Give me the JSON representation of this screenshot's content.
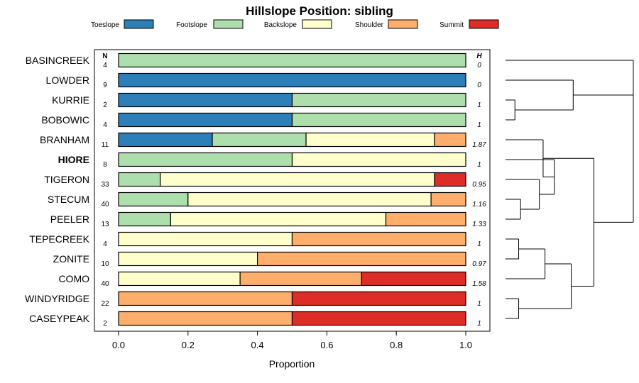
{
  "chart_data": {
    "type": "bar",
    "orientation": "horizontal",
    "stacked": true,
    "title": "Hillslope Position: sibling",
    "xlabel": "Proportion",
    "xlim": [
      0,
      1
    ],
    "xticks": [
      "0.0",
      "0.2",
      "0.4",
      "0.6",
      "0.8",
      "1.0"
    ],
    "n_header": "N",
    "h_header": "H",
    "highlight_category": "HIORE",
    "legend_position": "top",
    "series": [
      {
        "name": "Toeslope",
        "color": "#2c7fb8"
      },
      {
        "name": "Footslope",
        "color": "#addfad"
      },
      {
        "name": "Backslope",
        "color": "#ffffcc"
      },
      {
        "name": "Shoulder",
        "color": "#fdae6b"
      },
      {
        "name": "Summit",
        "color": "#de2d26"
      }
    ],
    "rows": [
      {
        "category": "BASINCREEK",
        "n": "4",
        "h": "0",
        "values": [
          0,
          1,
          0,
          0,
          0
        ]
      },
      {
        "category": "LOWDER",
        "n": "9",
        "h": "0",
        "values": [
          1,
          0,
          0,
          0,
          0
        ]
      },
      {
        "category": "KURRIE",
        "n": "2",
        "h": "1",
        "values": [
          0.5,
          0.5,
          0,
          0,
          0
        ]
      },
      {
        "category": "BOBOWIC",
        "n": "4",
        "h": "1",
        "values": [
          0.5,
          0.5,
          0,
          0,
          0
        ]
      },
      {
        "category": "BRANHAM",
        "n": "11",
        "h": "1.87",
        "values": [
          0.27,
          0.27,
          0.37,
          0.09,
          0
        ]
      },
      {
        "category": "HIORE",
        "n": "8",
        "h": "1",
        "values": [
          0,
          0.5,
          0.5,
          0,
          0
        ]
      },
      {
        "category": "TIGERON",
        "n": "33",
        "h": "0.95",
        "values": [
          0,
          0.12,
          0.79,
          0,
          0.09
        ]
      },
      {
        "category": "STECUM",
        "n": "40",
        "h": "1.16",
        "values": [
          0,
          0.2,
          0.7,
          0.1,
          0
        ]
      },
      {
        "category": "PEELER",
        "n": "13",
        "h": "1.33",
        "values": [
          0,
          0.15,
          0.62,
          0.23,
          0
        ]
      },
      {
        "category": "TEPECREEK",
        "n": "4",
        "h": "1",
        "values": [
          0,
          0,
          0.5,
          0.5,
          0
        ]
      },
      {
        "category": "ZONITE",
        "n": "10",
        "h": "0.97",
        "values": [
          0,
          0,
          0.4,
          0.6,
          0
        ]
      },
      {
        "category": "COMO",
        "n": "40",
        "h": "1.58",
        "values": [
          0,
          0,
          0.35,
          0.35,
          0.3
        ]
      },
      {
        "category": "WINDYRIDGE",
        "n": "22",
        "h": "1",
        "values": [
          0,
          0,
          0,
          0.5,
          0.5
        ]
      },
      {
        "category": "CASEYPEAK",
        "n": "2",
        "h": "1",
        "values": [
          0,
          0,
          0,
          0.5,
          0.5
        ]
      }
    ],
    "dendrogram": {
      "leaf_order": [
        "BASINCREEK",
        "LOWDER",
        "KURRIE",
        "BOBOWIC",
        "BRANHAM",
        "HIORE",
        "TIGERON",
        "STECUM",
        "PEELER",
        "TEPECREEK",
        "ZONITE",
        "COMO",
        "WINDYRIDGE",
        "CASEYPEAK"
      ],
      "merges": [
        {
          "a": 3,
          "b": 4,
          "height": 0.05
        },
        {
          "a": 2,
          "b": 15,
          "height": 0.36
        },
        {
          "a": 1,
          "b": 16,
          "height": 0.68
        },
        {
          "a": 8,
          "b": 9,
          "height": 0.08
        },
        {
          "a": 7,
          "b": 18,
          "height": 0.18
        },
        {
          "a": 6,
          "b": 19,
          "height": 0.26
        },
        {
          "a": 5,
          "b": 20,
          "height": 0.2
        },
        {
          "a": 10,
          "b": 11,
          "height": 0.07
        },
        {
          "a": 12,
          "b": 22,
          "height": 0.21
        },
        {
          "a": 13,
          "b": 14,
          "height": 0.07
        },
        {
          "a": 23,
          "b": 24,
          "height": 0.35
        },
        {
          "a": 21,
          "b": 25,
          "height": 0.47
        },
        {
          "a": 17,
          "b": 26,
          "height": 0.68
        }
      ]
    }
  }
}
